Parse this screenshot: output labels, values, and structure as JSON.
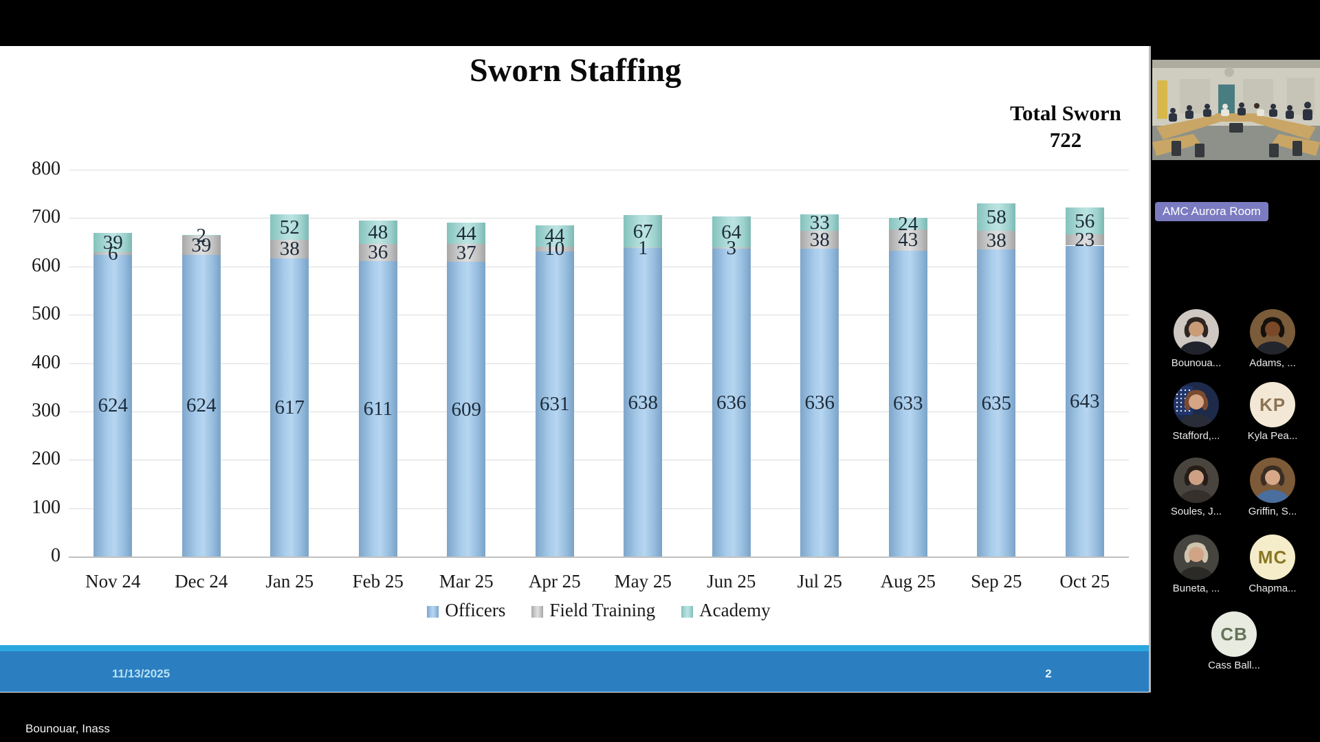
{
  "window": {
    "presenter_overlay": "Bounouar, Inass"
  },
  "slide": {
    "title": "Sworn Staffing",
    "total_sworn_label": "Total Sworn",
    "total_sworn_value": "722",
    "footer_date": "11/13/2025",
    "footer_page": "2",
    "footer_color": "#2b7fc0",
    "footer_strip_color": "#2aa7df"
  },
  "chart_data": {
    "type": "bar",
    "stacked": true,
    "title": "Sworn Staffing",
    "categories": [
      "Nov 24",
      "Dec 24",
      "Jan 25",
      "Feb 25",
      "Mar 25",
      "Apr 25",
      "May 25",
      "Jun 25",
      "Jul 25",
      "Aug 25",
      "Sep 25",
      "Oct 25"
    ],
    "series": [
      {
        "name": "Officers",
        "color": "#9dc3e6",
        "values": [
          624,
          624,
          617,
          611,
          609,
          631,
          638,
          636,
          636,
          633,
          635,
          643
        ]
      },
      {
        "name": "Field Training",
        "color": "#c6c6c6",
        "values": [
          6,
          39,
          38,
          36,
          37,
          10,
          1,
          3,
          38,
          43,
          38,
          23
        ]
      },
      {
        "name": "Academy",
        "color": "#a5d5d2",
        "values": [
          39,
          2,
          52,
          48,
          44,
          44,
          67,
          64,
          33,
          24,
          58,
          56
        ]
      }
    ],
    "ylim": [
      0,
      800
    ],
    "yticks": [
      0,
      100,
      200,
      300,
      400,
      500,
      600,
      700,
      800
    ],
    "grid": true,
    "data_labels": true,
    "legend": [
      "Officers",
      "Field Training",
      "Academy"
    ],
    "legend_position": "bottom",
    "annotation_total": "Total Sworn 722"
  },
  "panel": {
    "room_label": "AMC Aurora Room",
    "participants": [
      {
        "label": "Bounoua...",
        "kind": "photo",
        "bg": "#cec7c2",
        "hair": "#2e2420",
        "skin": "#c99b77",
        "shirt": "#20222c"
      },
      {
        "label": "Adams, ...",
        "kind": "photo",
        "bg": "#7a5c3a",
        "hair": "#15100c",
        "skin": "#7a4a28",
        "shirt": "#23252c"
      },
      {
        "label": "Stafford,...",
        "kind": "photo-flag",
        "bg": "#1d2a4a",
        "hair": "#7a4a30",
        "skin": "#d5a584",
        "shirt": "#2a2d38"
      },
      {
        "label": "Kyla Pea...",
        "kind": "initials",
        "initials": "KP",
        "bg": "#f3e8d5",
        "fg": "#8d7355"
      },
      {
        "label": "Soules, J...",
        "kind": "photo",
        "bg": "#4a443f",
        "hair": "#241d18",
        "skin": "#cfa184",
        "shirt": "#35302c"
      },
      {
        "label": "Griffin, S...",
        "kind": "photo",
        "bg": "#7d5a38",
        "hair": "#3a2e24",
        "skin": "#d8a888",
        "shirt": "#4a6e9e"
      },
      {
        "label": "Buneta, ...",
        "kind": "photo",
        "bg": "#46443f",
        "hair": "#cfc4ae",
        "skin": "#d2a487",
        "shirt": "#2c2a26"
      },
      {
        "label": "Chapma...",
        "kind": "initials",
        "initials": "MC",
        "bg": "#f5ecca",
        "fg": "#887722"
      },
      {
        "label": "Cass Ball...",
        "kind": "initials",
        "initials": "CB",
        "bg": "#e7ebe0",
        "fg": "#667259"
      }
    ]
  }
}
